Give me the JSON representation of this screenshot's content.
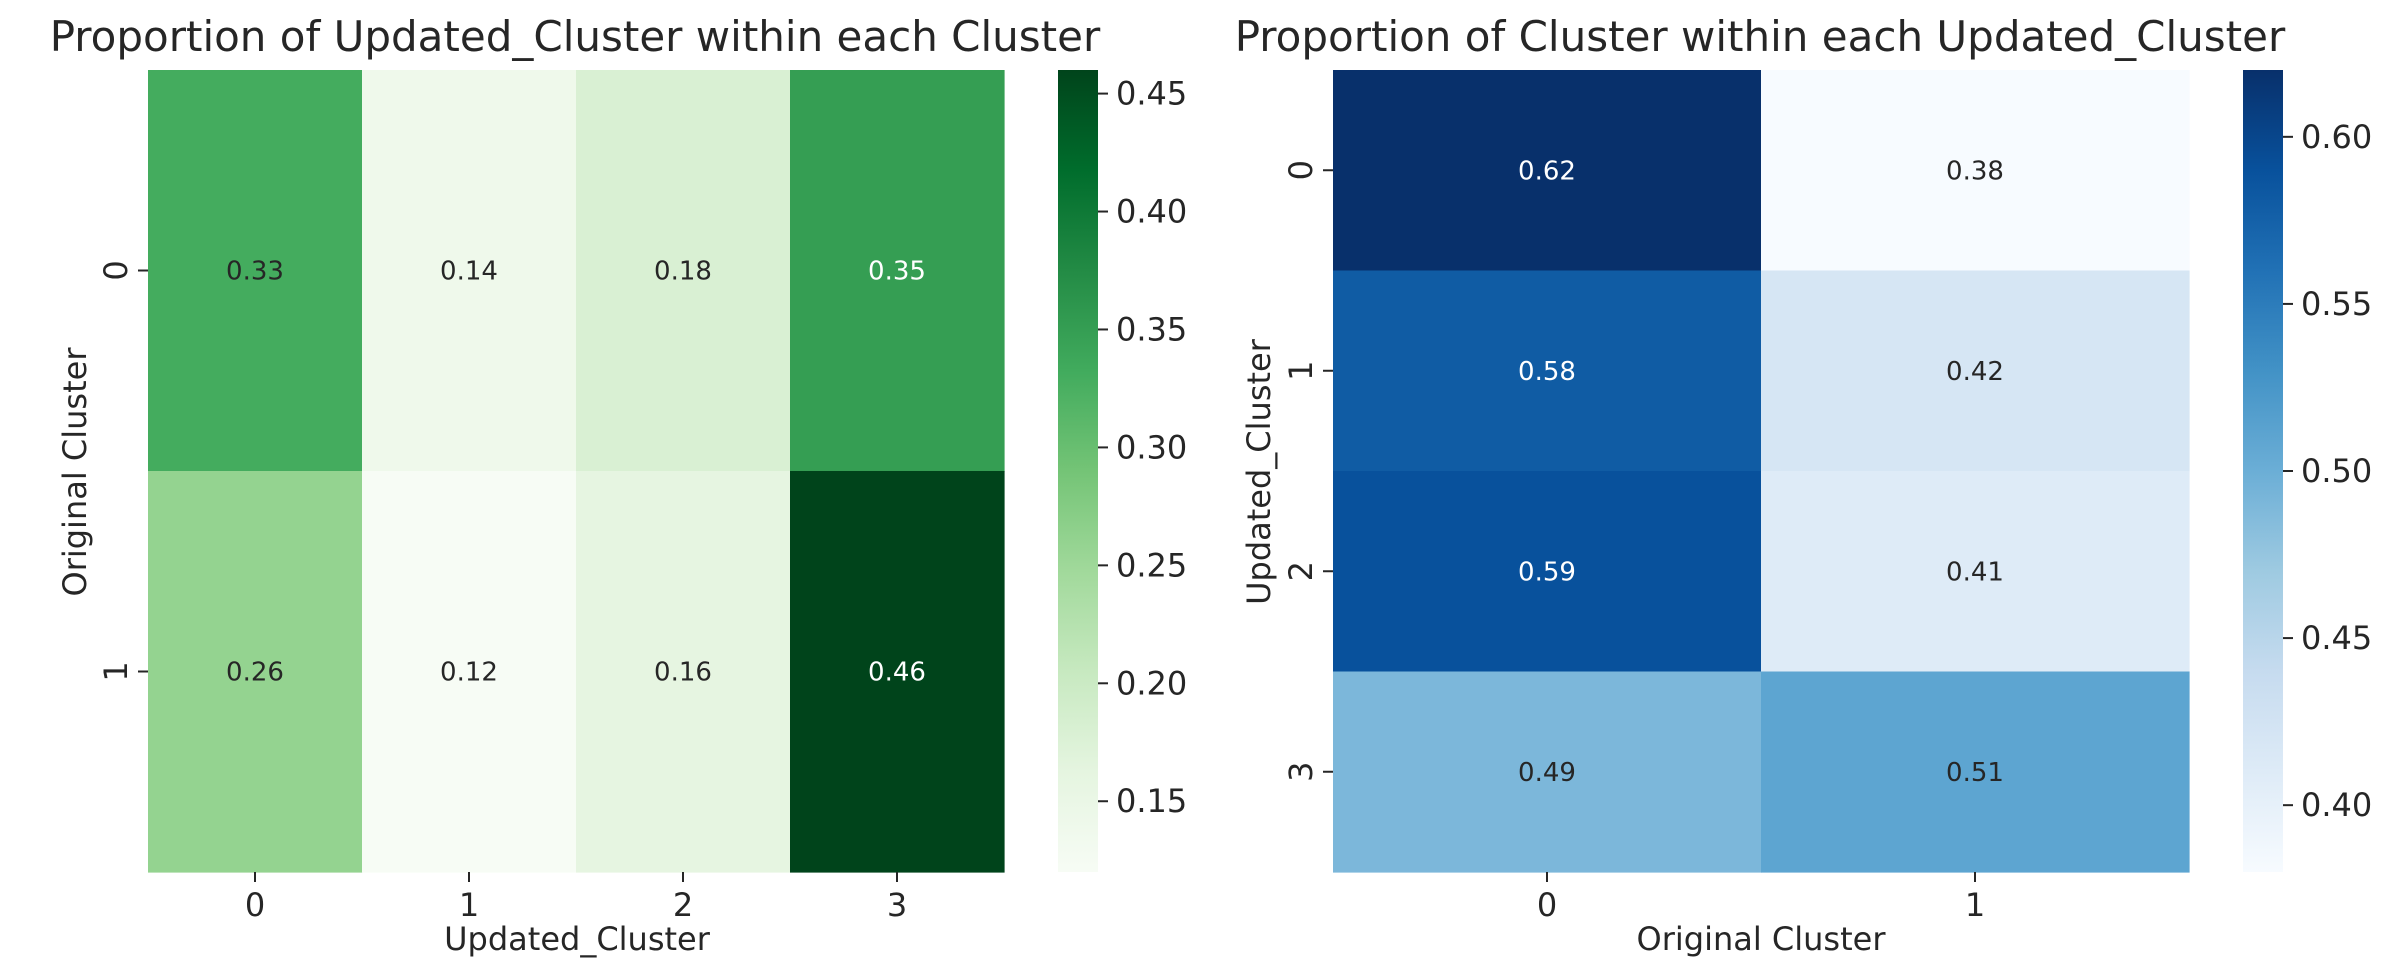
{
  "chart_data": [
    {
      "type": "heatmap",
      "title": "Proportion of Updated_Cluster within each Cluster",
      "xlabel": "Updated_Cluster",
      "ylabel": "Original Cluster",
      "x_categories": [
        "0",
        "1",
        "2",
        "3"
      ],
      "y_categories": [
        "0",
        "1"
      ],
      "values": [
        [
          0.33,
          0.14,
          0.18,
          0.35
        ],
        [
          0.26,
          0.12,
          0.16,
          0.46
        ]
      ],
      "colormap": "Greens",
      "colormap_stops": [
        "#f7fcf5",
        "#e5f5e0",
        "#c7e9c0",
        "#a1d99b",
        "#74c476",
        "#41ab5d",
        "#238b45",
        "#006d2c",
        "#00441b"
      ],
      "color_range": [
        0.12,
        0.46
      ],
      "colorbar_ticks": [
        "0.15",
        "0.20",
        "0.25",
        "0.30",
        "0.35",
        "0.40",
        "0.45"
      ]
    },
    {
      "type": "heatmap",
      "title": "Proportion of Cluster within each Updated_Cluster",
      "xlabel": "Original Cluster",
      "ylabel": "Updated_Cluster",
      "x_categories": [
        "0",
        "1"
      ],
      "y_categories": [
        "0",
        "1",
        "2",
        "3"
      ],
      "values": [
        [
          0.62,
          0.38
        ],
        [
          0.58,
          0.42
        ],
        [
          0.59,
          0.41
        ],
        [
          0.49,
          0.51
        ]
      ],
      "colormap": "Blues",
      "colormap_stops": [
        "#f7fbff",
        "#deebf7",
        "#c6dbef",
        "#9ecae1",
        "#6baed6",
        "#4292c6",
        "#2171b5",
        "#08519c",
        "#08306b"
      ],
      "color_range": [
        0.38,
        0.62
      ],
      "colorbar_ticks": [
        "0.40",
        "0.45",
        "0.50",
        "0.55",
        "0.60"
      ]
    }
  ]
}
